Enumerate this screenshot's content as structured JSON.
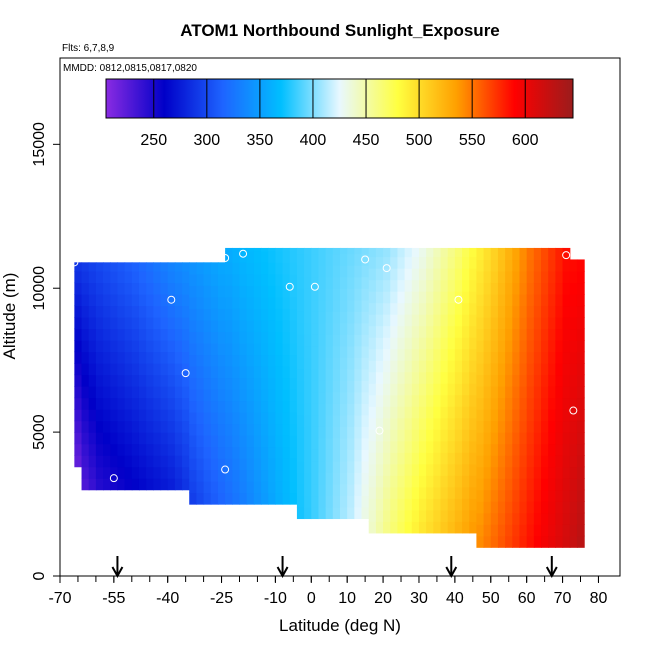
{
  "chart_data": {
    "type": "heatmap",
    "title": "ATOM1 Northbound Sunlight_Exposure",
    "flights_note": "Flts: 6,7,8,9",
    "mmdd_note": "MMDD: 0812,0815,0817,0820",
    "xlabel": "Latitude (deg N)",
    "ylabel": "Altitude (m)",
    "xlim": [
      -70,
      86
    ],
    "ylim": [
      0,
      18000
    ],
    "x_ticks": [
      -70,
      -55,
      -40,
      -25,
      -10,
      0,
      10,
      20,
      30,
      40,
      50,
      60,
      70,
      80
    ],
    "y_ticks": [
      0,
      5000,
      10000,
      15000
    ],
    "colorbar": {
      "range": [
        205,
        645
      ],
      "ticks": [
        250,
        300,
        350,
        400,
        450,
        500,
        550,
        600
      ],
      "colors": [
        "#8a2be2",
        "#0000c8",
        "#1e64ff",
        "#00bfff",
        "#e8f8ff",
        "#ffff40",
        "#ffa000",
        "#ff0000",
        "#9b1c1c"
      ]
    },
    "arrow_latitudes": [
      -54,
      -8,
      39,
      67
    ],
    "observation_points": [
      {
        "lat": -66,
        "alt": 10900
      },
      {
        "lat": -55,
        "alt": 3400
      },
      {
        "lat": -39,
        "alt": 9600
      },
      {
        "lat": -35,
        "alt": 7050
      },
      {
        "lat": -24,
        "alt": 3700
      },
      {
        "lat": -24,
        "alt": 11050
      },
      {
        "lat": -19,
        "alt": 11200
      },
      {
        "lat": -6,
        "alt": 10050
      },
      {
        "lat": 1,
        "alt": 10050
      },
      {
        "lat": 15,
        "alt": 11000
      },
      {
        "lat": 19,
        "alt": 5050
      },
      {
        "lat": 21,
        "alt": 10700
      },
      {
        "lat": 41,
        "alt": 9600
      },
      {
        "lat": 71,
        "alt": 11150
      },
      {
        "lat": 73,
        "alt": 5750
      }
    ],
    "field_columns": [
      {
        "lat": -66,
        "alt_min": 3800,
        "alt_max": 10900,
        "bottom_value": 220,
        "top_value": 290
      },
      {
        "lat": -60,
        "alt_min": 3000,
        "alt_max": 10900,
        "bottom_value": 245,
        "top_value": 300
      },
      {
        "lat": -50,
        "alt_min": 3000,
        "alt_max": 10900,
        "bottom_value": 260,
        "top_value": 315
      },
      {
        "lat": -40,
        "alt_min": 3000,
        "alt_max": 10900,
        "bottom_value": 275,
        "top_value": 335
      },
      {
        "lat": -30,
        "alt_min": 2500,
        "alt_max": 10900,
        "bottom_value": 305,
        "top_value": 350
      },
      {
        "lat": -20,
        "alt_min": 2500,
        "alt_max": 11400,
        "bottom_value": 330,
        "top_value": 365
      },
      {
        "lat": -10,
        "alt_min": 2500,
        "alt_max": 11400,
        "bottom_value": 360,
        "top_value": 375
      },
      {
        "lat": 0,
        "alt_min": 2000,
        "alt_max": 11400,
        "bottom_value": 385,
        "top_value": 385
      },
      {
        "lat": 10,
        "alt_min": 2000,
        "alt_max": 11400,
        "bottom_value": 415,
        "top_value": 395
      },
      {
        "lat": 20,
        "alt_min": 1500,
        "alt_max": 11400,
        "bottom_value": 460,
        "top_value": 405
      },
      {
        "lat": 30,
        "alt_min": 1500,
        "alt_max": 11400,
        "bottom_value": 495,
        "top_value": 430
      },
      {
        "lat": 40,
        "alt_min": 1500,
        "alt_max": 11400,
        "bottom_value": 525,
        "top_value": 465
      },
      {
        "lat": 50,
        "alt_min": 1000,
        "alt_max": 11400,
        "bottom_value": 555,
        "top_value": 505
      },
      {
        "lat": 60,
        "alt_min": 1000,
        "alt_max": 11400,
        "bottom_value": 585,
        "top_value": 550
      },
      {
        "lat": 70,
        "alt_min": 1000,
        "alt_max": 11400,
        "bottom_value": 615,
        "top_value": 585
      },
      {
        "lat": 76,
        "alt_min": 1000,
        "alt_max": 11000,
        "bottom_value": 635,
        "top_value": 590
      }
    ]
  }
}
